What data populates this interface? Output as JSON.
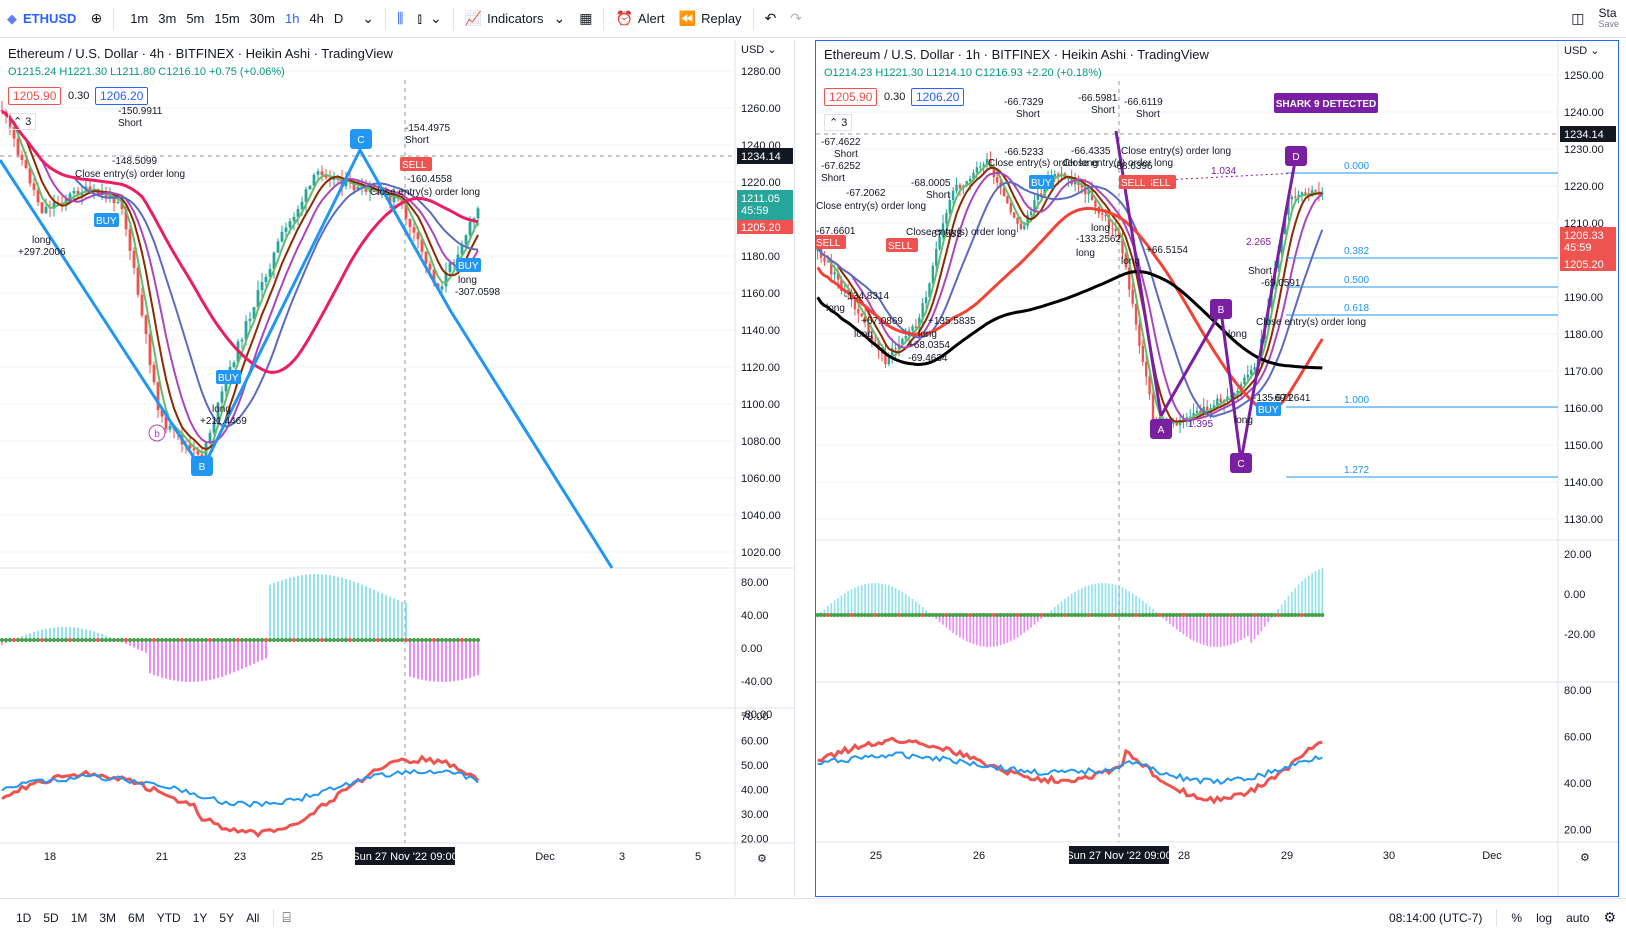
{
  "toolbar": {
    "symbol": "ETHUSD",
    "timeframes": [
      "1m",
      "3m",
      "5m",
      "15m",
      "30m",
      "1h",
      "4h",
      "D"
    ],
    "active_timeframe": "1h",
    "indicators_label": "Indicators",
    "alert_label": "Alert",
    "replay_label": "Replay",
    "right_label": "Sta",
    "right_sub": "Save"
  },
  "left": {
    "title": "Ethereum / U.S. Dollar · 4h · BITFINEX · Heikin Ashi · TradingView",
    "ohlc": "O1215.24 H1221.30 L1211.80 C1216.10 +0.75 (+0.06%)",
    "bid": "1205.90",
    "spread": "0.30",
    "ask": "1206.20",
    "indicator_count": "3",
    "axis_currency": "USD",
    "price_ticks": [
      "1280.00",
      "1260.00",
      "1240.00",
      "1220.00",
      "1200.00",
      "1180.00",
      "1160.00",
      "1140.00",
      "1120.00",
      "1100.00",
      "1080.00",
      "1060.00",
      "1040.00",
      "1020.00"
    ],
    "last_price": "1234.14",
    "current_price": "1211.05",
    "countdown": "45:59",
    "ask_tag": "1205.20",
    "osc_ticks": [
      "80.00",
      "40.00",
      "0.00",
      "-40.00",
      "-80.00"
    ],
    "rsi_ticks": [
      "70.00",
      "60.00",
      "50.00",
      "40.00",
      "30.00",
      "20.00"
    ],
    "time_ticks": [
      "18",
      "21",
      "23",
      "25",
      "3",
      "5"
    ],
    "time_dec": "Dec",
    "crosshair_time": "Sun 27 Nov '22   09:00",
    "pattern_points": [
      "C",
      "B",
      "b"
    ],
    "annotations": [
      {
        "t": "-150.9911"
      },
      {
        "t": "Short"
      },
      {
        "t": "-148.5099"
      },
      {
        "t": "Close entry(s) order long"
      },
      {
        "t": "BUY"
      },
      {
        "t": "long"
      },
      {
        "t": "+297.2006"
      },
      {
        "t": "-154.4975"
      },
      {
        "t": "Short"
      },
      {
        "t": "SELL"
      },
      {
        "t": "-160.4558"
      },
      {
        "t": "Close entry(s) order long"
      },
      {
        "t": "BUY"
      },
      {
        "t": "long"
      },
      {
        "t": "-307.0598"
      },
      {
        "t": "BUY"
      },
      {
        "t": "long"
      },
      {
        "t": "+211.4469"
      }
    ]
  },
  "right": {
    "title": "Ethereum / U.S. Dollar · 1h · BITFINEX · Heikin Ashi · TradingView",
    "ohlc": "O1214.23 H1221.30 L1214.10 C1216.93 +2.20 (+0.18%)",
    "bid": "1205.90",
    "spread": "0.30",
    "ask": "1206.20",
    "indicator_count": "3",
    "axis_currency": "USD",
    "price_ticks": [
      "1250.00",
      "1240.00",
      "1230.00",
      "1220.00",
      "1210.00",
      "1200.00",
      "1190.00",
      "1180.00",
      "1170.00",
      "1160.00",
      "1150.00",
      "1140.00",
      "1130.00"
    ],
    "last_price": "1234.14",
    "current_price": "1206.33",
    "countdown": "45:59",
    "ask_tag": "1205.20",
    "osc_ticks": [
      "20.00",
      "0.00",
      "-20.00"
    ],
    "rsi_ticks": [
      "80.00",
      "60.00",
      "40.00",
      "20.00"
    ],
    "time_ticks": [
      "25",
      "26",
      "28",
      "29",
      "30",
      "Dec"
    ],
    "crosshair_time": "Sun 27 Nov '22   09:00",
    "shark_label": "SHARK 9 DETECTED",
    "fib_levels": [
      "0.000",
      "0.382",
      "0.500",
      "0.618",
      "1.000",
      "1.272"
    ],
    "pattern_points": [
      "D",
      "B",
      "A",
      "C"
    ],
    "pattern_ratios": [
      "1.034",
      "2.265",
      "1.395"
    ],
    "annotations": [
      {
        "t": "-66.7329"
      },
      {
        "t": "Short"
      },
      {
        "t": "-66.5981"
      },
      {
        "t": "Short"
      },
      {
        "t": "-66.6119"
      },
      {
        "t": "Short"
      },
      {
        "t": "-67.4622"
      },
      {
        "t": "Short"
      },
      {
        "t": "-67.6252"
      },
      {
        "t": "Short"
      },
      {
        "t": "-67.2062"
      },
      {
        "t": "-68.0005"
      },
      {
        "t": "Short"
      },
      {
        "t": "-67.583"
      },
      {
        "t": "-66.5233"
      },
      {
        "t": "-66.4335"
      },
      {
        "t": "Close entry(s) order long"
      },
      {
        "t": "Close entry(s) order long"
      },
      {
        "t": "Close entry(s) order long"
      },
      {
        "t": "-68.6396"
      },
      {
        "t": "Close entry(s) order long"
      },
      {
        "t": "-67.6601"
      },
      {
        "t": "Close entry(s) order long"
      },
      {
        "t": "SELL"
      },
      {
        "t": "SELL"
      },
      {
        "t": "SELL"
      },
      {
        "t": "SELL"
      },
      {
        "t": "BUY"
      },
      {
        "t": "long"
      },
      {
        "t": "-133.2562"
      },
      {
        "t": "long"
      },
      {
        "t": "+66.5154"
      },
      {
        "t": "long"
      },
      {
        "t": "-134.8314"
      },
      {
        "t": "long"
      },
      {
        "t": "+67.0869"
      },
      {
        "t": "long"
      },
      {
        "t": "+135.5835"
      },
      {
        "t": "long"
      },
      {
        "t": "+68.0354"
      },
      {
        "t": "-69.4634"
      },
      {
        "t": "Short"
      },
      {
        "t": "-69.0591"
      },
      {
        "t": "Close entry(s) order long"
      },
      {
        "t": "long"
      },
      {
        "t": "-135.671"
      },
      {
        "t": "long"
      },
      {
        "t": "-69.2641"
      },
      {
        "t": "BUY"
      }
    ]
  },
  "bottom": {
    "ranges": [
      "1D",
      "5D",
      "1M",
      "3M",
      "6M",
      "YTD",
      "1Y",
      "5Y",
      "All"
    ],
    "clock": "08:14:00 (UTC-7)",
    "pct": "%",
    "log": "log",
    "auto": "auto"
  },
  "colors": {
    "up": "#26a69a",
    "down": "#ef5350",
    "accent": "#2962ff",
    "pattern_left": "#2196f3",
    "pattern_right": "#7b1fa2"
  }
}
